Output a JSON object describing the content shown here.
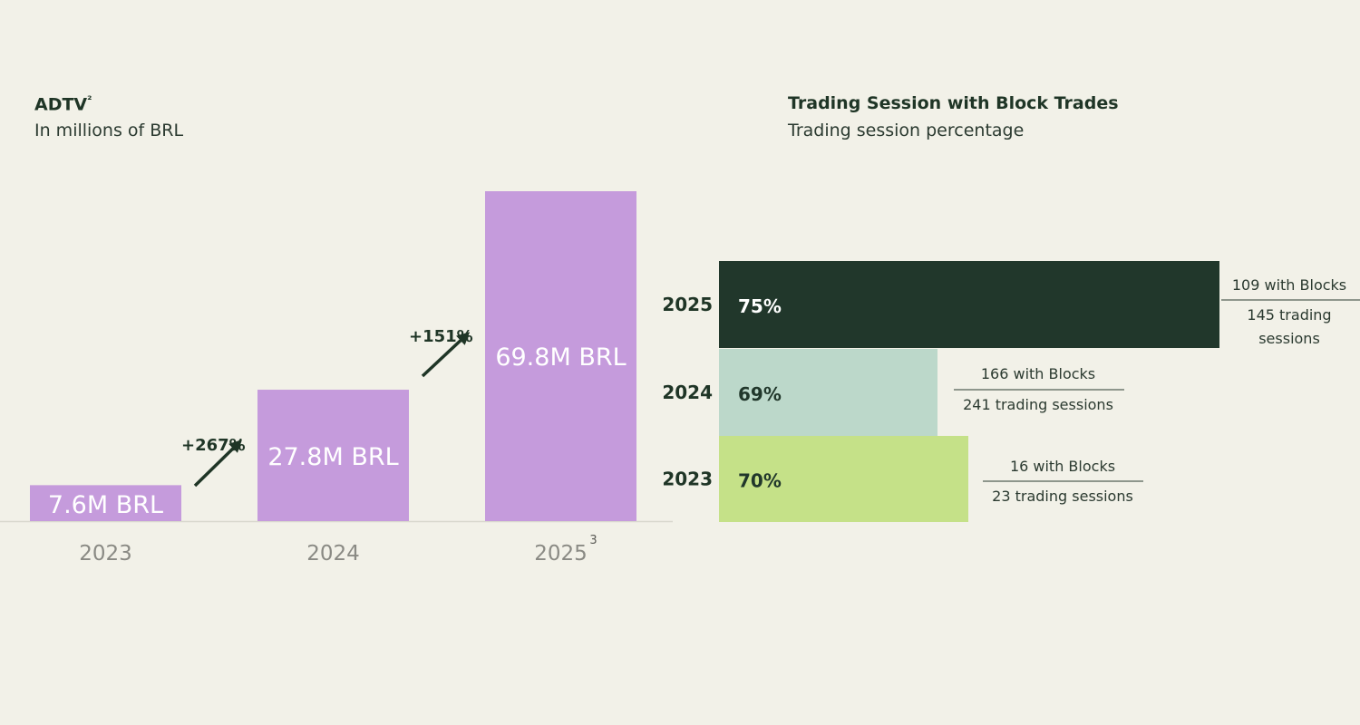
{
  "chart_data": [
    {
      "type": "bar",
      "title": "ADTV",
      "title_sup": "²",
      "subtitle": "In millions of BRL",
      "categories": [
        "2023",
        "2024",
        "2025"
      ],
      "category_sups": [
        "",
        "",
        "3"
      ],
      "values": [
        7.6,
        27.8,
        69.8
      ],
      "data_labels": [
        "7.6M BRL",
        "27.8M BRL",
        "69.8M BRL"
      ],
      "growth": [
        "+267%",
        "+151%"
      ],
      "bar_color": "#c59bdc",
      "ylim": [
        0,
        69.8
      ],
      "grid": false
    },
    {
      "type": "bar",
      "orientation": "horizontal",
      "title": "Trading Session with Block Trades",
      "subtitle": "Trading session percentage",
      "categories": [
        "2025",
        "2024",
        "2023"
      ],
      "values": [
        75,
        69,
        70
      ],
      "data_labels": [
        "75%",
        "69%",
        "70%"
      ],
      "colors": [
        "#21372b",
        "#bcd8ca",
        "#c5e188"
      ],
      "label_colors": [
        "#ffffff",
        "#21372b",
        "#21372b"
      ],
      "with_blocks": [
        "109 with Blocks",
        "166 with Blocks",
        "16 with Blocks"
      ],
      "trading_sessions": [
        [
          "145 trading",
          "sessions"
        ],
        [
          "241 trading sessions"
        ],
        [
          "23 trading sessions"
        ]
      ]
    }
  ]
}
